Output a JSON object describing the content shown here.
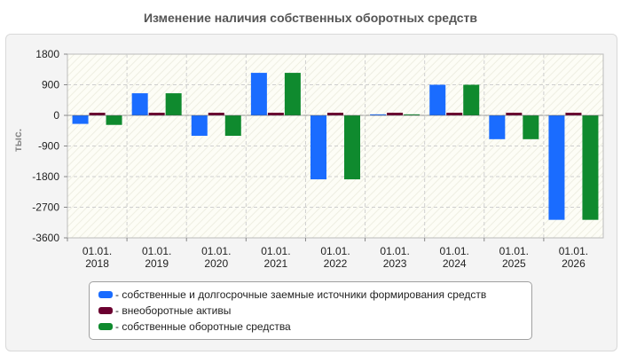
{
  "chart_data": {
    "type": "bar",
    "title": "Изменение наличия собственных оборотных средств",
    "ylabel": "тыс.",
    "xlabel": "",
    "ylim": [
      -3600,
      1800
    ],
    "yticks": [
      "1800",
      "900",
      "0",
      "-900",
      "-1800",
      "-2700",
      "-3600"
    ],
    "ytick_values": [
      1800,
      900,
      0,
      -900,
      -1800,
      -2700,
      -3600
    ],
    "categories": [
      "01.01.\n2018",
      "01.01.\n2019",
      "01.01.\n2020",
      "01.01.\n2021",
      "01.01.\n2022",
      "01.01.\n2023",
      "01.01.\n2024",
      "01.01.\n2025",
      "01.01.\n2026"
    ],
    "series": [
      {
        "name": "- собственные и долгосрочные заемные источники формирования средств",
        "color": "#1a6cff",
        "values": [
          -250,
          650,
          -600,
          1250,
          -1880,
          30,
          900,
          -700,
          -3070
        ]
      },
      {
        "name": "- внеоборотные активы",
        "color": "#6b0030",
        "values": [
          40,
          40,
          40,
          40,
          40,
          40,
          40,
          40,
          40
        ]
      },
      {
        "name": "- собственные оборотные средства",
        "color": "#0f8a2e",
        "values": [
          -280,
          650,
          -600,
          1250,
          -1880,
          30,
          900,
          -700,
          -3070
        ]
      }
    ],
    "grid": true,
    "legend_position": "bottom"
  }
}
